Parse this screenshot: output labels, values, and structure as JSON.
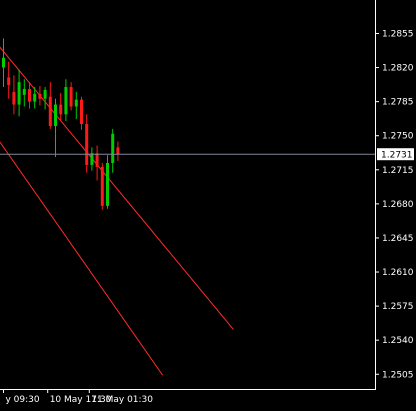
{
  "colors": {
    "background": "#000000",
    "axis": "#ffffff",
    "bull_candle": "#00cc00",
    "bear_candle": "#ff1a1a",
    "channel": "#ff2b2b",
    "current_price_line": "#7f8a99",
    "price_tag_bg": "#ffffff",
    "price_tag_text": "#000000"
  },
  "chart_data": {
    "type": "candlestick",
    "y_axis": {
      "ylim": [
        1.2495,
        1.2875
      ],
      "ticks": [
        "1.2855",
        "1.2820",
        "1.2785",
        "1.2750",
        "1.2715",
        "1.2680",
        "1.2645",
        "1.2610",
        "1.2575",
        "1.2540",
        "1.2505"
      ]
    },
    "x_axis": {
      "ticks": [
        {
          "label": "y 09:30",
          "bar": 0
        },
        {
          "label": "10 May 17:30",
          "bar": 8.5
        },
        {
          "label": "11 May 01:30",
          "bar": 16.5
        }
      ]
    },
    "current_price": {
      "value": 1.2731,
      "label": "1.2731"
    },
    "channel_lines": [
      {
        "p1": {
          "bar": -1.5,
          "price": 1.2848
        },
        "p2": {
          "bar": 44.5,
          "price": 1.2551
        }
      },
      {
        "p1": {
          "bar": -1.5,
          "price": 1.2752
        },
        "p2": {
          "bar": 30.9,
          "price": 1.2504
        }
      }
    ],
    "candles": [
      {
        "o": 1.282,
        "h": 1.285,
        "l": 1.28,
        "c": 1.283
      },
      {
        "o": 1.281,
        "h": 1.2826,
        "l": 1.2788,
        "c": 1.2802
      },
      {
        "o": 1.2795,
        "h": 1.2812,
        "l": 1.2772,
        "c": 1.2782
      },
      {
        "o": 1.2782,
        "h": 1.2818,
        "l": 1.277,
        "c": 1.2805
      },
      {
        "o": 1.2792,
        "h": 1.2808,
        "l": 1.278,
        "c": 1.2798
      },
      {
        "o": 1.2798,
        "h": 1.2805,
        "l": 1.2778,
        "c": 1.2785
      },
      {
        "o": 1.2785,
        "h": 1.28,
        "l": 1.2778,
        "c": 1.2793
      },
      {
        "o": 1.2793,
        "h": 1.2801,
        "l": 1.2781,
        "c": 1.2788
      },
      {
        "o": 1.2788,
        "h": 1.28,
        "l": 1.2777,
        "c": 1.2797
      },
      {
        "o": 1.279,
        "h": 1.2805,
        "l": 1.2757,
        "c": 1.276
      },
      {
        "o": 1.276,
        "h": 1.2788,
        "l": 1.2728,
        "c": 1.2782
      },
      {
        "o": 1.2782,
        "h": 1.2794,
        "l": 1.2766,
        "c": 1.2772
      },
      {
        "o": 1.2772,
        "h": 1.2808,
        "l": 1.2765,
        "c": 1.28
      },
      {
        "o": 1.28,
        "h": 1.2805,
        "l": 1.2776,
        "c": 1.278
      },
      {
        "o": 1.278,
        "h": 1.2795,
        "l": 1.2767,
        "c": 1.2787
      },
      {
        "o": 1.2787,
        "h": 1.279,
        "l": 1.2756,
        "c": 1.2762
      },
      {
        "o": 1.2762,
        "h": 1.2772,
        "l": 1.2712,
        "c": 1.272
      },
      {
        "o": 1.272,
        "h": 1.2738,
        "l": 1.2714,
        "c": 1.2732
      },
      {
        "o": 1.2732,
        "h": 1.274,
        "l": 1.2704,
        "c": 1.2718
      },
      {
        "o": 1.2718,
        "h": 1.2722,
        "l": 1.2674,
        "c": 1.2678
      },
      {
        "o": 1.2678,
        "h": 1.273,
        "l": 1.2675,
        "c": 1.2722
      },
      {
        "o": 1.2722,
        "h": 1.2757,
        "l": 1.2712,
        "c": 1.2752
      },
      {
        "o": 1.2738,
        "h": 1.2744,
        "l": 1.2724,
        "c": 1.2731
      }
    ]
  }
}
